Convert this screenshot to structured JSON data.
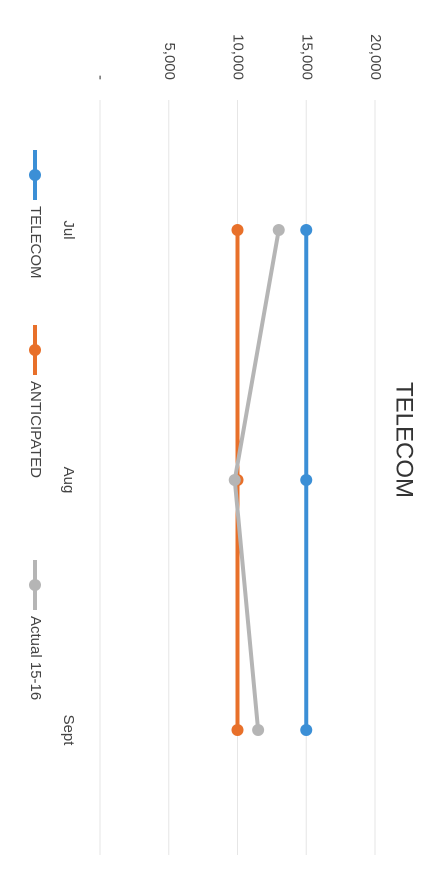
{
  "chart_data": {
    "type": "line",
    "title": "TELECOM",
    "categories": [
      "Jul",
      "Aug",
      "Sept"
    ],
    "series": [
      {
        "name": "TELECOM",
        "color": "#3b8fd6",
        "values": [
          15000,
          15000,
          15000
        ]
      },
      {
        "name": "ANTICIPATED",
        "color": "#e8702a",
        "values": [
          10000,
          10000,
          10000
        ]
      },
      {
        "name": "Actual 15-16",
        "color": "#b5b5b5",
        "values": [
          13000,
          9800,
          11500
        ]
      }
    ],
    "ylim": [
      0,
      20000
    ],
    "yticks": [
      {
        "value": 0,
        "label": "-"
      },
      {
        "value": 5000,
        "label": "5,000"
      },
      {
        "value": 10000,
        "label": "10,000"
      },
      {
        "value": 15000,
        "label": "15,000"
      },
      {
        "value": 20000,
        "label": "20,000"
      }
    ],
    "grid": true,
    "legend": "bottom"
  }
}
